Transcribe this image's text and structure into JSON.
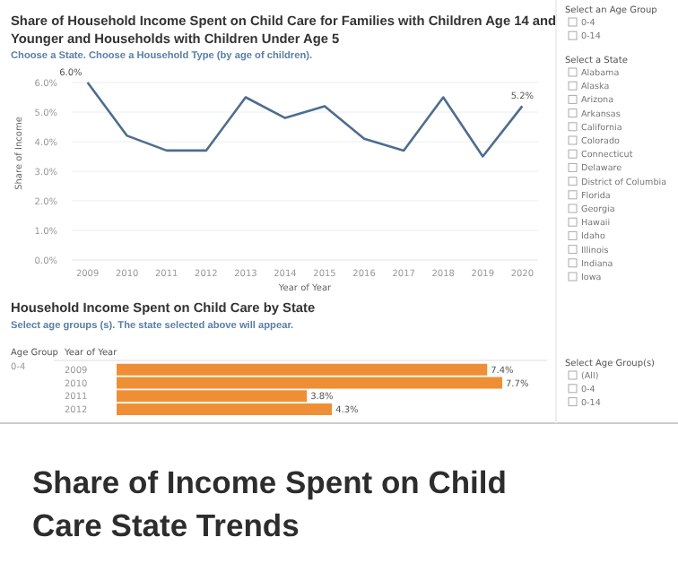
{
  "chart_data": [
    {
      "type": "line",
      "title": "Share of Household Income Spent on Child Care for Families with Children Age 14 and Younger and Households with Children Under Age 5",
      "subtitle": "Choose a State. Choose a Household Type (by age of children).",
      "xlabel": "Year of Year",
      "ylabel": "Share of Income",
      "x": [
        2009,
        2010,
        2011,
        2012,
        2013,
        2014,
        2015,
        2016,
        2017,
        2018,
        2019,
        2020
      ],
      "xlim": [
        2008.6,
        2020.4
      ],
      "xticks": [
        2009,
        2010,
        2011,
        2012,
        2013,
        2014,
        2015,
        2016,
        2017,
        2018,
        2019,
        2020
      ],
      "ylim": [
        0,
        6
      ],
      "yticks": [
        {
          "value": 0,
          "label": "0.0%"
        },
        {
          "value": 1,
          "label": "1.0%"
        },
        {
          "value": 2,
          "label": "2.0%"
        },
        {
          "value": 3,
          "label": "3.0%"
        },
        {
          "value": 4,
          "label": "4.0%"
        },
        {
          "value": 5,
          "label": "5.0%"
        },
        {
          "value": 6,
          "label": "6.0%"
        }
      ],
      "grid": "y",
      "marker": "none",
      "series": [
        {
          "color": "#4e6d8f",
          "values": [
            6.0,
            4.2,
            3.7,
            3.7,
            5.5,
            4.8,
            5.2,
            4.1,
            3.7,
            5.5,
            3.5,
            5.2
          ],
          "value_labels": [
            "6.0%",
            null,
            null,
            null,
            null,
            null,
            null,
            null,
            null,
            null,
            null,
            "5.2%"
          ]
        }
      ]
    },
    {
      "type": "bar",
      "orientation": "horizontal",
      "title": "Household Income Spent on Child Care by State",
      "subtitle": "Select age groups (s). The state selected above will appear.",
      "annotations": [
        "Age Group",
        "Year of Year",
        "0-4"
      ],
      "categories": [
        "2009",
        "2010",
        "2011",
        "2012"
      ],
      "series": [
        {
          "color": "#ef8f35",
          "values": [
            7.4,
            7.7,
            3.8,
            4.3
          ],
          "value_labels": [
            "7.4%",
            "7.7%",
            "3.8%",
            "4.3%"
          ]
        }
      ]
    },
    {
      "type": "other",
      "title": "Select an Age Group",
      "categories": [
        "0-4",
        "0-14"
      ]
    },
    {
      "type": "other",
      "title": "Select a State",
      "categories": [
        "Alabama",
        "Alaska",
        "Arizona",
        "Arkansas",
        "California",
        "Colorado",
        "Connecticut",
        "Delaware",
        "District of Columbia",
        "Florida",
        "Georgia",
        "Hawaii",
        "Idaho",
        "Illinois",
        "Indiana",
        "Iowa"
      ]
    },
    {
      "type": "other",
      "title": "Select Age Group(s)",
      "categories": [
        "(All)",
        "0-4",
        "0-14"
      ]
    },
    {
      "type": "other",
      "title": "Share of Income Spent on Child Care State Trends"
    }
  ]
}
